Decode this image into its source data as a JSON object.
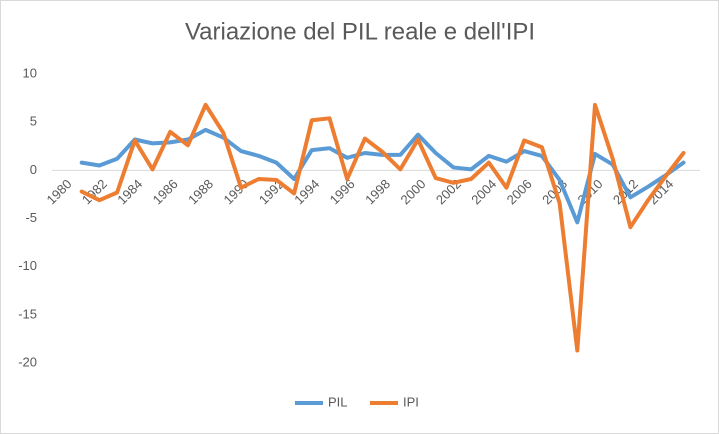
{
  "chart_data": {
    "type": "line",
    "title": "Variazione del PIL reale e dell'IPI",
    "categories": [
      "1980",
      null,
      "1982",
      null,
      "1984",
      null,
      "1986",
      null,
      "1988",
      null,
      "1990",
      null,
      "1992",
      null,
      "1994",
      null,
      "1996",
      null,
      "1998",
      null,
      "2000",
      null,
      "2002",
      null,
      "2004",
      null,
      "2006",
      null,
      "2008",
      null,
      "2010",
      null,
      "2012",
      null,
      "2014",
      null
    ],
    "series": [
      {
        "name": "PIL",
        "color": "#5b9bd5",
        "values": [
          null,
          0.8,
          0.5,
          1.2,
          3.2,
          2.8,
          2.9,
          3.2,
          4.2,
          3.4,
          2.0,
          1.5,
          0.8,
          -0.9,
          2.1,
          2.3,
          1.3,
          1.8,
          1.6,
          1.6,
          3.7,
          1.8,
          0.3,
          0.1,
          1.5,
          0.9,
          2.0,
          1.5,
          -1.0,
          -5.4,
          1.7,
          0.6,
          -2.8,
          -1.7,
          -0.5,
          0.8
        ]
      },
      {
        "name": "IPI",
        "color": "#ed7d31",
        "values": [
          null,
          -2.2,
          -3.1,
          -2.3,
          3.1,
          0.1,
          4.0,
          2.6,
          6.8,
          3.9,
          -1.8,
          -0.9,
          -1.0,
          -2.4,
          5.2,
          5.4,
          -0.9,
          3.3,
          1.9,
          0.1,
          3.2,
          -0.8,
          -1.3,
          -0.9,
          0.8,
          -1.8,
          3.1,
          2.4,
          -3.4,
          -18.7,
          6.8,
          1.2,
          -5.9,
          -3.1,
          -0.6,
          1.8
        ]
      }
    ],
    "ylim": [
      -20,
      10
    ],
    "yticks": [
      -20,
      -15,
      -10,
      -5,
      0,
      5,
      10
    ],
    "grid": false,
    "legend": "bottom"
  }
}
